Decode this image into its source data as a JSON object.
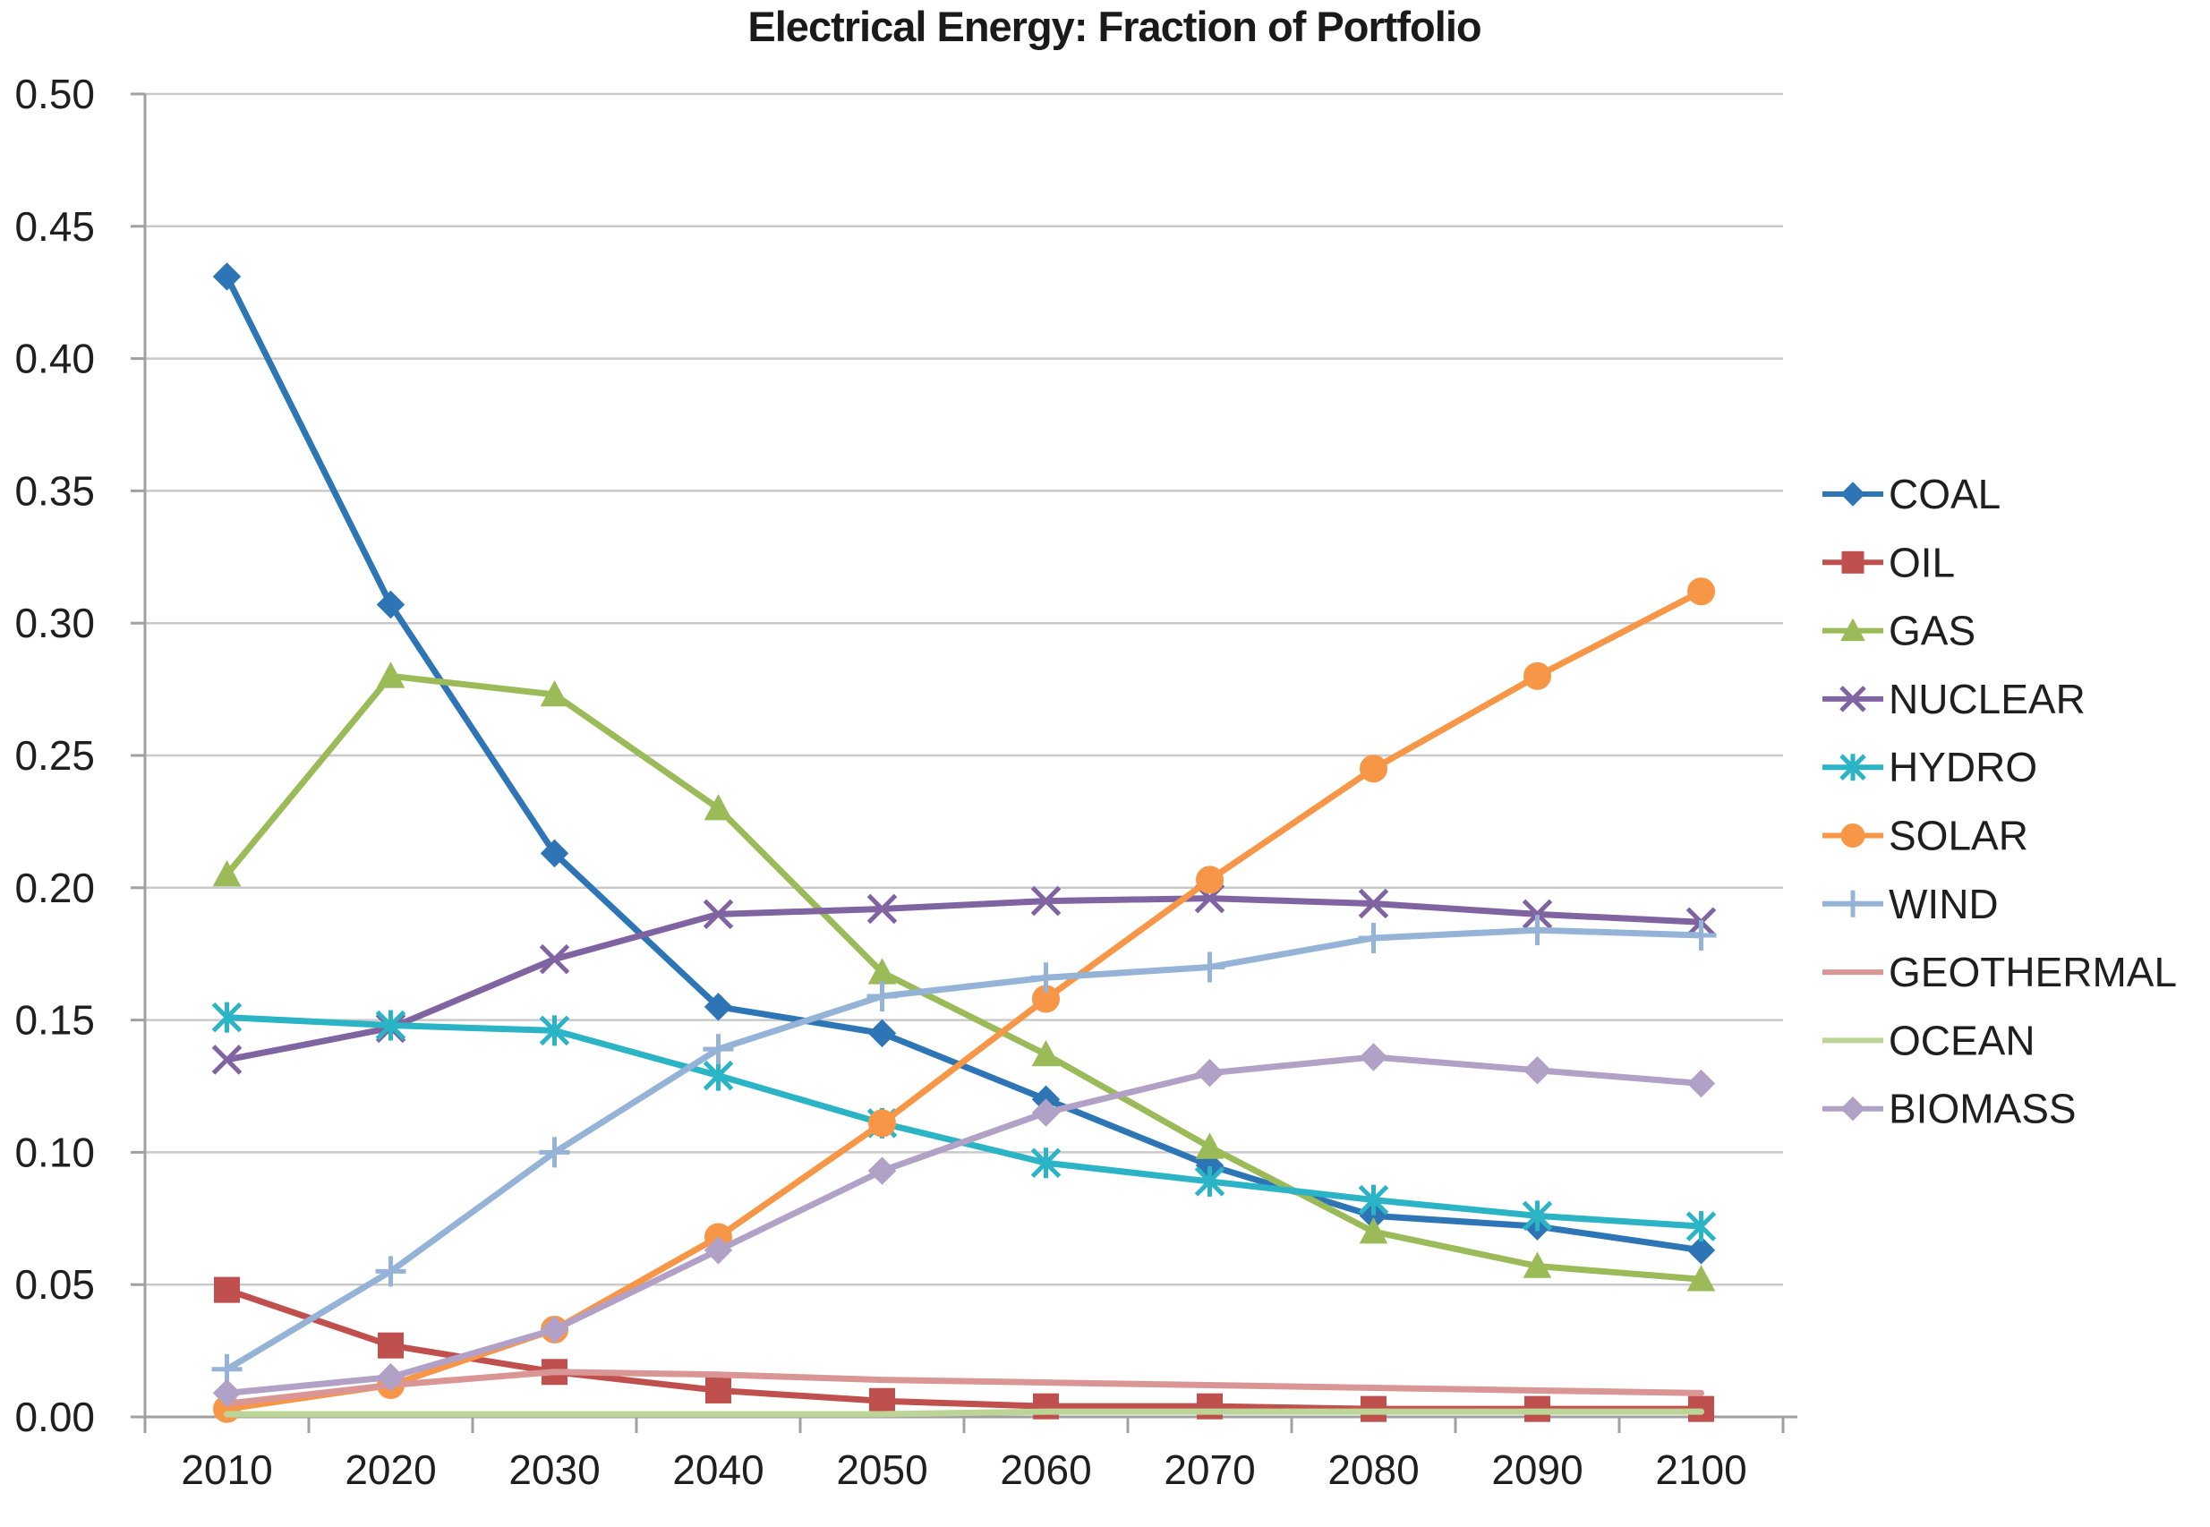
{
  "chart_data": {
    "type": "line",
    "title": "Electrical Energy: Fraction of Portfolio",
    "xlabel": "",
    "ylabel": "",
    "x": [
      2010,
      2020,
      2030,
      2040,
      2050,
      2060,
      2070,
      2080,
      2090,
      2100
    ],
    "ylim": [
      0,
      0.5
    ],
    "ytick_step": 0.05,
    "ytick_labels": [
      "0.00",
      "0.05",
      "0.10",
      "0.15",
      "0.20",
      "0.25",
      "0.30",
      "0.35",
      "0.40",
      "0.45",
      "0.50"
    ],
    "grid": "horizontal",
    "legend_position": "right",
    "colors": {
      "axis": "#a0a0a0",
      "gridline": "#c9c9c9",
      "text": "#1f1f1f"
    },
    "series": [
      {
        "name": "COAL",
        "color": "#2e75b6",
        "marker": "diamond",
        "values": [
          0.431,
          0.307,
          0.213,
          0.155,
          0.145,
          0.12,
          0.095,
          0.076,
          0.072,
          0.063
        ]
      },
      {
        "name": "OIL",
        "color": "#c0504d",
        "marker": "square",
        "values": [
          0.048,
          0.027,
          0.017,
          0.01,
          0.006,
          0.004,
          0.004,
          0.003,
          0.003,
          0.003
        ]
      },
      {
        "name": "GAS",
        "color": "#9bbb59",
        "marker": "triangle",
        "values": [
          0.205,
          0.28,
          0.273,
          0.23,
          0.168,
          0.137,
          0.102,
          0.07,
          0.057,
          0.052
        ]
      },
      {
        "name": "NUCLEAR",
        "color": "#8064a2",
        "marker": "x",
        "values": [
          0.135,
          0.147,
          0.173,
          0.19,
          0.192,
          0.195,
          0.196,
          0.194,
          0.19,
          0.187
        ]
      },
      {
        "name": "HYDRO",
        "color": "#2bb3c6",
        "marker": "asterisk",
        "values": [
          0.151,
          0.148,
          0.146,
          0.129,
          0.111,
          0.096,
          0.089,
          0.082,
          0.076,
          0.072
        ]
      },
      {
        "name": "SOLAR",
        "color": "#f79646",
        "marker": "circle",
        "values": [
          0.003,
          0.012,
          0.033,
          0.068,
          0.111,
          0.158,
          0.203,
          0.245,
          0.28,
          0.312
        ]
      },
      {
        "name": "WIND",
        "color": "#95b3d7",
        "marker": "plus",
        "values": [
          0.018,
          0.055,
          0.1,
          0.139,
          0.159,
          0.166,
          0.17,
          0.181,
          0.184,
          0.182
        ]
      },
      {
        "name": "GEOTHERMAL",
        "color": "#d99694",
        "marker": "none",
        "values": [
          0.005,
          0.012,
          0.017,
          0.016,
          0.014,
          0.013,
          0.012,
          0.011,
          0.01,
          0.009
        ]
      },
      {
        "name": "OCEAN",
        "color": "#bcd596",
        "marker": "none",
        "values": [
          0.001,
          0.001,
          0.001,
          0.001,
          0.001,
          0.002,
          0.002,
          0.002,
          0.002,
          0.002
        ]
      },
      {
        "name": "BIOMASS",
        "color": "#b2a1c7",
        "marker": "diamond",
        "values": [
          0.009,
          0.015,
          0.033,
          0.063,
          0.093,
          0.115,
          0.13,
          0.136,
          0.131,
          0.126
        ]
      }
    ]
  }
}
